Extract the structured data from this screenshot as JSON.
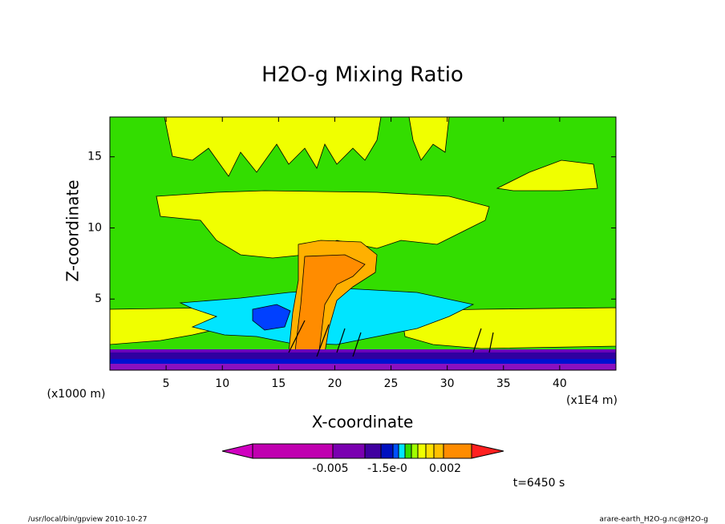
{
  "chart_data": {
    "type": "contour",
    "title": "H2O-g Mixing Ratio",
    "x_label": "X-coordinate",
    "y_label": "Z-coordinate",
    "x_unit": "(x1E4 m)",
    "y_unit": "(x1000 m)",
    "xlim": [
      0,
      45
    ],
    "xticks": [
      5,
      10,
      15,
      20,
      25,
      30,
      35,
      40
    ],
    "ylim": [
      0,
      17.8
    ],
    "yticks": [
      5,
      10,
      15
    ],
    "colorbar_labels": [
      "-0.005",
      "-1.5e-0",
      "0.002"
    ],
    "time_label": "t=6450 s",
    "footer_left": "/usr/local/bin/gpview  2010-10-27",
    "footer_right": "arare-earth_H2O-g.nc@H2O-g"
  }
}
